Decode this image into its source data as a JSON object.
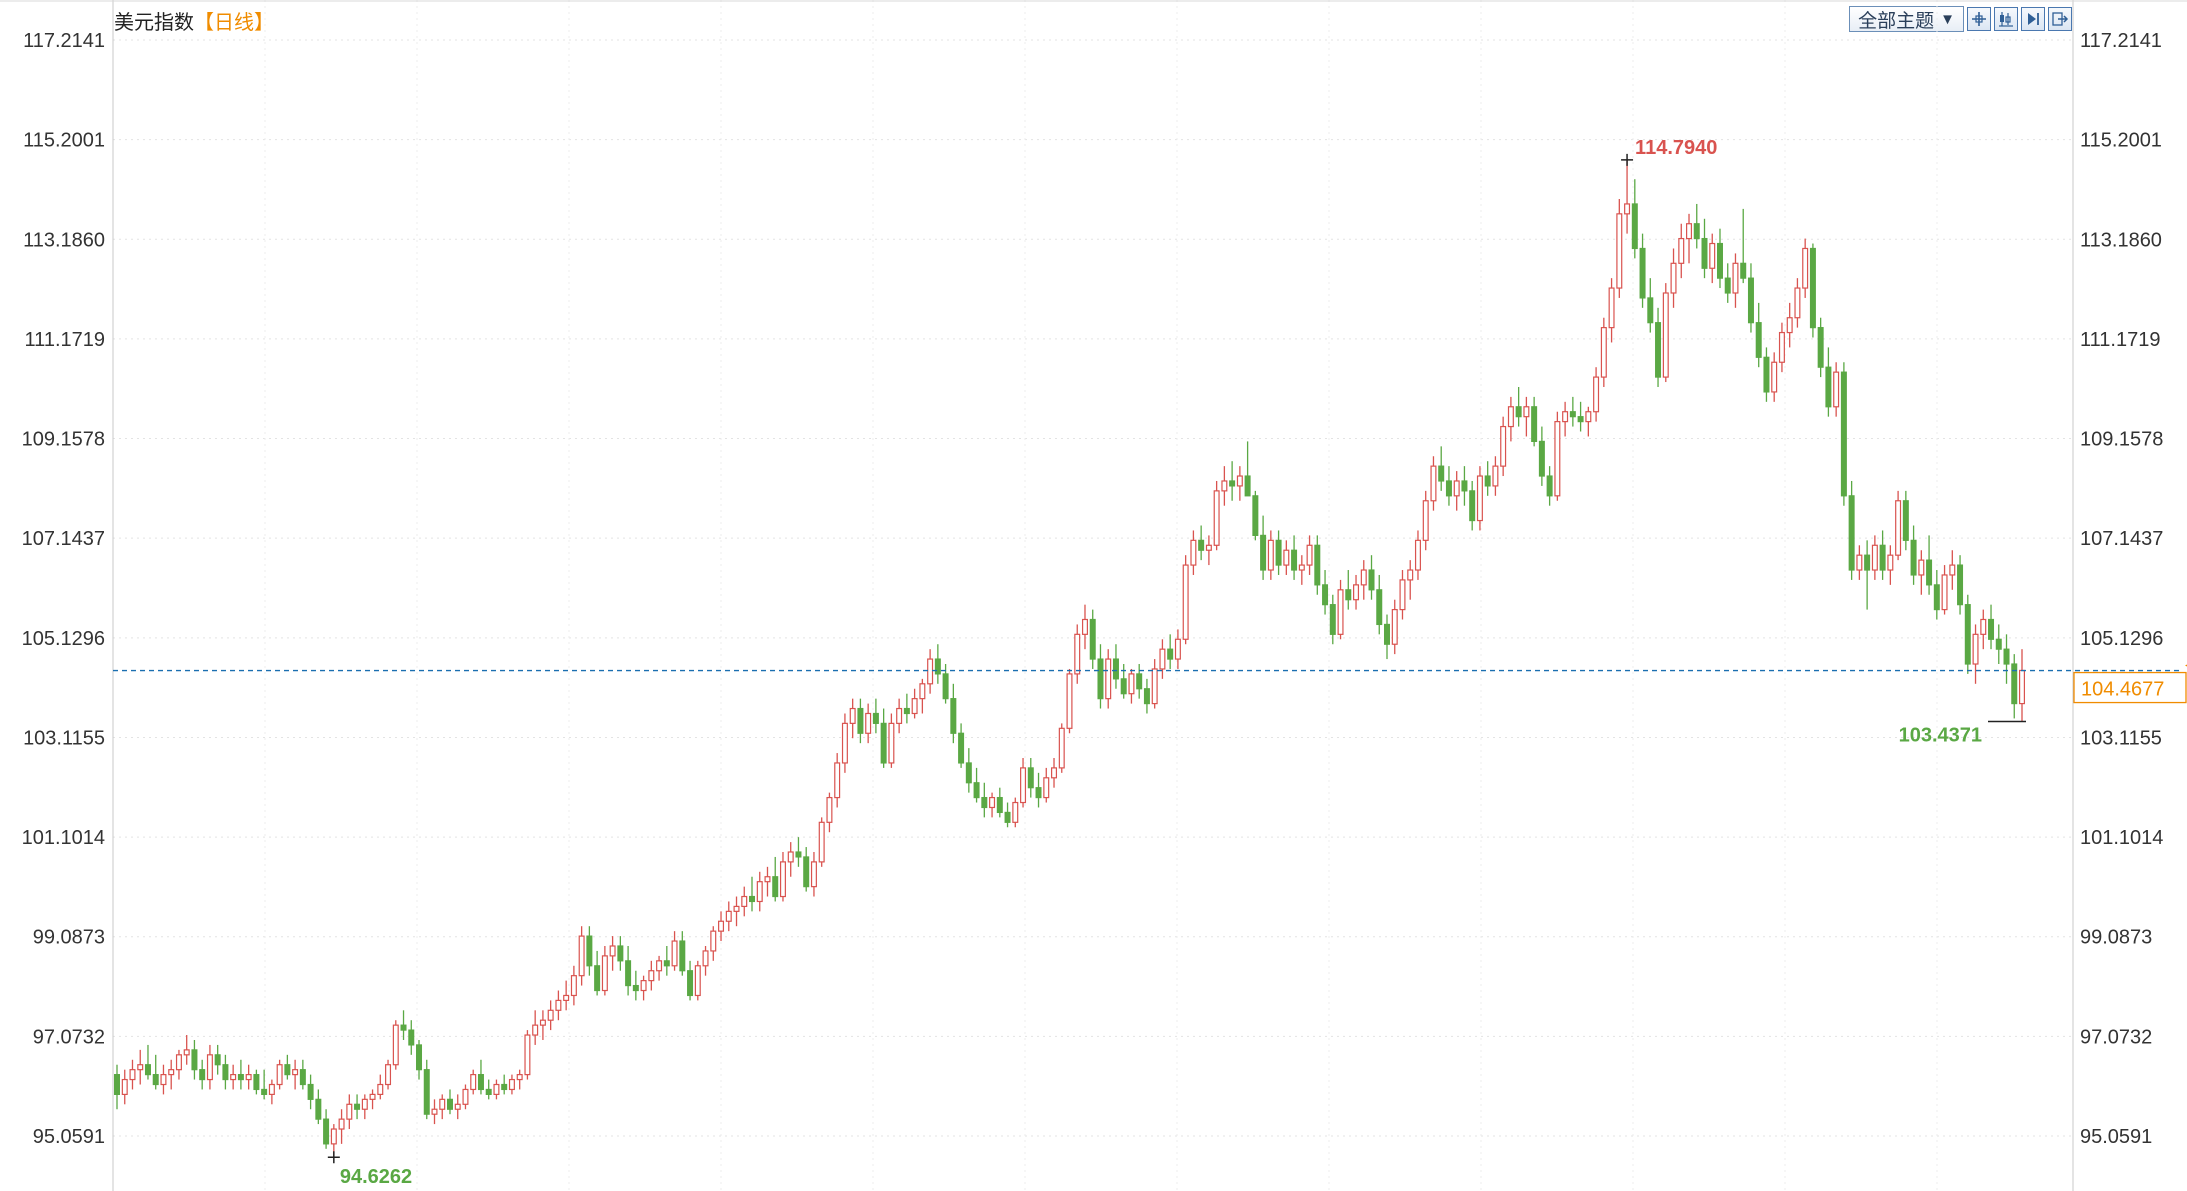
{
  "header": {
    "title": "美元指数",
    "period": "【日线】"
  },
  "toolbar": {
    "theme_label": "全部主题",
    "caret": "▼",
    "icons": [
      "crosshair-icon",
      "candlestick-icon",
      "step-forward-icon",
      "export-icon"
    ]
  },
  "colors": {
    "up": "#d9534f",
    "down": "#5aa844",
    "current_line": "#1a6fb0",
    "current_box": "#f08c00"
  },
  "chart_data": {
    "type": "candlestick",
    "title": "美元指数",
    "period": "日线",
    "y_ticks": [
      "117.2141",
      "115.2001",
      "113.1860",
      "111.1719",
      "109.1578",
      "107.1437",
      "105.1296",
      "103.1155",
      "101.1014",
      "99.0873",
      "97.0732",
      "95.0591"
    ],
    "ylim": [
      94.4,
      117.2141
    ],
    "current_price": "104.4677",
    "annotations": {
      "high": "114.7940",
      "low_left": "94.6262",
      "low_right": "103.4371"
    },
    "grid": true,
    "ohlc": [
      [
        96.3,
        96.5,
        95.6,
        95.9
      ],
      [
        95.9,
        96.4,
        95.7,
        96.2
      ],
      [
        96.2,
        96.6,
        96.0,
        96.4
      ],
      [
        96.4,
        96.8,
        96.1,
        96.5
      ],
      [
        96.5,
        96.9,
        96.2,
        96.3
      ],
      [
        96.3,
        96.7,
        96.0,
        96.1
      ],
      [
        96.1,
        96.5,
        95.9,
        96.3
      ],
      [
        96.3,
        96.6,
        96.0,
        96.4
      ],
      [
        96.4,
        96.8,
        96.2,
        96.7
      ],
      [
        96.7,
        97.1,
        96.5,
        96.8
      ],
      [
        96.8,
        97.0,
        96.2,
        96.4
      ],
      [
        96.4,
        96.6,
        96.0,
        96.2
      ],
      [
        96.2,
        96.9,
        96.0,
        96.7
      ],
      [
        96.7,
        96.9,
        96.3,
        96.5
      ],
      [
        96.5,
        96.7,
        96.0,
        96.2
      ],
      [
        96.2,
        96.5,
        96.0,
        96.3
      ],
      [
        96.3,
        96.6,
        96.0,
        96.2
      ],
      [
        96.2,
        96.5,
        96.0,
        96.3
      ],
      [
        96.3,
        96.4,
        95.9,
        96.0
      ],
      [
        96.0,
        96.4,
        95.8,
        95.9
      ],
      [
        95.9,
        96.2,
        95.7,
        96.1
      ],
      [
        96.1,
        96.6,
        96.0,
        96.5
      ],
      [
        96.5,
        96.7,
        96.2,
        96.3
      ],
      [
        96.3,
        96.6,
        96.0,
        96.4
      ],
      [
        96.4,
        96.6,
        96.0,
        96.1
      ],
      [
        96.1,
        96.3,
        95.6,
        95.8
      ],
      [
        95.8,
        96.0,
        95.3,
        95.4
      ],
      [
        95.4,
        95.6,
        94.8,
        94.9
      ],
      [
        94.9,
        95.3,
        94.63,
        95.2
      ],
      [
        95.2,
        95.6,
        94.9,
        95.4
      ],
      [
        95.4,
        95.9,
        95.2,
        95.7
      ],
      [
        95.7,
        95.9,
        95.4,
        95.6
      ],
      [
        95.6,
        95.9,
        95.4,
        95.8
      ],
      [
        95.8,
        96.0,
        95.6,
        95.9
      ],
      [
        95.9,
        96.3,
        95.8,
        96.1
      ],
      [
        96.1,
        96.6,
        96.0,
        96.5
      ],
      [
        96.5,
        97.4,
        96.4,
        97.3
      ],
      [
        97.3,
        97.6,
        97.0,
        97.2
      ],
      [
        97.2,
        97.4,
        96.7,
        96.9
      ],
      [
        96.9,
        97.0,
        96.2,
        96.4
      ],
      [
        96.4,
        96.6,
        95.4,
        95.5
      ],
      [
        95.5,
        95.8,
        95.3,
        95.6
      ],
      [
        95.6,
        95.9,
        95.4,
        95.8
      ],
      [
        95.8,
        96.0,
        95.5,
        95.6
      ],
      [
        95.6,
        95.9,
        95.4,
        95.7
      ],
      [
        95.7,
        96.1,
        95.6,
        96.0
      ],
      [
        96.0,
        96.4,
        95.9,
        96.3
      ],
      [
        96.3,
        96.6,
        95.9,
        96.0
      ],
      [
        96.0,
        96.2,
        95.8,
        95.9
      ],
      [
        95.9,
        96.2,
        95.8,
        96.1
      ],
      [
        96.1,
        96.3,
        95.9,
        96.0
      ],
      [
        96.0,
        96.3,
        95.9,
        96.2
      ],
      [
        96.2,
        96.4,
        96.0,
        96.3
      ],
      [
        96.3,
        97.2,
        96.2,
        97.1
      ],
      [
        97.1,
        97.6,
        96.9,
        97.3
      ],
      [
        97.3,
        97.6,
        97.0,
        97.4
      ],
      [
        97.4,
        97.8,
        97.2,
        97.6
      ],
      [
        97.6,
        98.0,
        97.4,
        97.8
      ],
      [
        97.8,
        98.2,
        97.6,
        97.9
      ],
      [
        97.9,
        98.5,
        97.7,
        98.3
      ],
      [
        98.3,
        99.3,
        98.1,
        99.1
      ],
      [
        99.1,
        99.3,
        98.3,
        98.5
      ],
      [
        98.5,
        98.8,
        97.9,
        98.0
      ],
      [
        98.0,
        98.9,
        97.9,
        98.7
      ],
      [
        98.7,
        99.1,
        98.4,
        98.9
      ],
      [
        98.9,
        99.1,
        98.4,
        98.6
      ],
      [
        98.6,
        98.9,
        97.9,
        98.1
      ],
      [
        98.1,
        98.4,
        97.8,
        98.0
      ],
      [
        98.0,
        98.3,
        97.8,
        98.2
      ],
      [
        98.2,
        98.6,
        98.0,
        98.4
      ],
      [
        98.4,
        98.7,
        98.2,
        98.6
      ],
      [
        98.6,
        98.9,
        98.3,
        98.5
      ],
      [
        98.5,
        99.2,
        98.4,
        99.0
      ],
      [
        99.0,
        99.2,
        98.3,
        98.4
      ],
      [
        98.4,
        98.6,
        97.8,
        97.9
      ],
      [
        97.9,
        98.6,
        97.8,
        98.5
      ],
      [
        98.5,
        98.9,
        98.3,
        98.8
      ],
      [
        98.8,
        99.3,
        98.6,
        99.2
      ],
      [
        99.2,
        99.6,
        99.0,
        99.4
      ],
      [
        99.4,
        99.8,
        99.2,
        99.6
      ],
      [
        99.6,
        99.9,
        99.3,
        99.7
      ],
      [
        99.7,
        100.1,
        99.5,
        99.9
      ],
      [
        99.9,
        100.3,
        99.6,
        99.8
      ],
      [
        99.8,
        100.4,
        99.6,
        100.2
      ],
      [
        100.2,
        100.5,
        99.9,
        100.3
      ],
      [
        100.3,
        100.7,
        99.8,
        99.9
      ],
      [
        99.9,
        100.8,
        99.8,
        100.6
      ],
      [
        100.6,
        101.0,
        100.3,
        100.8
      ],
      [
        100.8,
        101.1,
        100.5,
        100.7
      ],
      [
        100.7,
        100.9,
        100.0,
        100.1
      ],
      [
        100.1,
        100.8,
        99.9,
        100.6
      ],
      [
        100.6,
        101.5,
        100.5,
        101.4
      ],
      [
        101.4,
        102.0,
        101.2,
        101.9
      ],
      [
        101.9,
        102.8,
        101.7,
        102.6
      ],
      [
        102.6,
        103.6,
        102.4,
        103.4
      ],
      [
        103.4,
        103.9,
        103.1,
        103.7
      ],
      [
        103.7,
        103.9,
        103.0,
        103.2
      ],
      [
        103.2,
        103.8,
        103.0,
        103.6
      ],
      [
        103.6,
        103.9,
        103.2,
        103.4
      ],
      [
        103.4,
        103.7,
        102.5,
        102.6
      ],
      [
        102.6,
        103.6,
        102.5,
        103.4
      ],
      [
        103.4,
        103.9,
        103.2,
        103.7
      ],
      [
        103.7,
        104.0,
        103.4,
        103.6
      ],
      [
        103.6,
        104.1,
        103.5,
        103.9
      ],
      [
        103.9,
        104.3,
        103.6,
        104.2
      ],
      [
        104.2,
        104.9,
        104.0,
        104.7
      ],
      [
        104.7,
        105.0,
        104.2,
        104.4
      ],
      [
        104.4,
        104.6,
        103.8,
        103.9
      ],
      [
        103.9,
        104.2,
        103.0,
        103.2
      ],
      [
        103.2,
        103.4,
        102.5,
        102.6
      ],
      [
        102.6,
        102.9,
        102.0,
        102.2
      ],
      [
        102.2,
        102.5,
        101.8,
        101.9
      ],
      [
        101.9,
        102.2,
        101.5,
        101.7
      ],
      [
        101.7,
        102.0,
        101.5,
        101.9
      ],
      [
        101.9,
        102.1,
        101.5,
        101.6
      ],
      [
        101.6,
        101.8,
        101.3,
        101.4
      ],
      [
        101.4,
        101.9,
        101.3,
        101.8
      ],
      [
        101.8,
        102.7,
        101.7,
        102.5
      ],
      [
        102.5,
        102.7,
        101.9,
        102.1
      ],
      [
        102.1,
        102.4,
        101.7,
        101.9
      ],
      [
        101.9,
        102.5,
        101.8,
        102.3
      ],
      [
        102.3,
        102.7,
        102.1,
        102.5
      ],
      [
        102.5,
        103.4,
        102.4,
        103.3
      ],
      [
        103.3,
        104.5,
        103.2,
        104.4
      ],
      [
        104.4,
        105.4,
        104.2,
        105.2
      ],
      [
        105.2,
        105.8,
        104.9,
        105.5
      ],
      [
        105.5,
        105.7,
        104.5,
        104.7
      ],
      [
        104.7,
        105.0,
        103.7,
        103.9
      ],
      [
        103.9,
        104.9,
        103.7,
        104.7
      ],
      [
        104.7,
        105.0,
        104.1,
        104.3
      ],
      [
        104.3,
        104.6,
        103.9,
        104.0
      ],
      [
        104.0,
        104.5,
        103.8,
        104.4
      ],
      [
        104.4,
        104.6,
        103.9,
        104.1
      ],
      [
        104.1,
        104.3,
        103.6,
        103.8
      ],
      [
        103.8,
        104.7,
        103.7,
        104.5
      ],
      [
        104.5,
        105.1,
        104.3,
        104.9
      ],
      [
        104.9,
        105.2,
        104.5,
        104.7
      ],
      [
        104.7,
        105.3,
        104.5,
        105.1
      ],
      [
        105.1,
        106.8,
        105.0,
        106.6
      ],
      [
        106.6,
        107.3,
        106.4,
        107.1
      ],
      [
        107.1,
        107.4,
        106.7,
        106.9
      ],
      [
        106.9,
        107.2,
        106.6,
        107.0
      ],
      [
        107.0,
        108.3,
        106.9,
        108.1
      ],
      [
        108.1,
        108.6,
        107.8,
        108.3
      ],
      [
        108.3,
        108.7,
        107.9,
        108.2
      ],
      [
        108.2,
        108.6,
        107.9,
        108.4
      ],
      [
        108.4,
        109.1,
        108.0,
        108.0
      ],
      [
        108.0,
        108.1,
        107.1,
        107.2
      ],
      [
        107.2,
        107.6,
        106.3,
        106.5
      ],
      [
        106.5,
        107.3,
        106.3,
        107.1
      ],
      [
        107.1,
        107.3,
        106.4,
        106.6
      ],
      [
        106.6,
        107.1,
        106.4,
        106.9
      ],
      [
        106.9,
        107.2,
        106.3,
        106.5
      ],
      [
        106.5,
        106.8,
        106.2,
        106.6
      ],
      [
        106.6,
        107.2,
        106.4,
        107.0
      ],
      [
        107.0,
        107.2,
        106.0,
        106.2
      ],
      [
        106.2,
        106.5,
        105.6,
        105.8
      ],
      [
        105.8,
        106.0,
        105.0,
        105.2
      ],
      [
        105.2,
        106.3,
        105.1,
        106.1
      ],
      [
        106.1,
        106.5,
        105.7,
        105.9
      ],
      [
        105.9,
        106.4,
        105.7,
        106.2
      ],
      [
        106.2,
        106.7,
        105.9,
        106.5
      ],
      [
        106.5,
        106.8,
        105.9,
        106.1
      ],
      [
        106.1,
        106.4,
        105.2,
        105.4
      ],
      [
        105.4,
        105.6,
        104.7,
        105.0
      ],
      [
        105.0,
        105.9,
        104.8,
        105.7
      ],
      [
        105.7,
        106.5,
        105.5,
        106.3
      ],
      [
        106.3,
        106.7,
        105.9,
        106.5
      ],
      [
        106.5,
        107.3,
        106.3,
        107.1
      ],
      [
        107.1,
        108.1,
        106.9,
        107.9
      ],
      [
        107.9,
        108.8,
        107.7,
        108.6
      ],
      [
        108.6,
        109.0,
        108.1,
        108.3
      ],
      [
        108.3,
        108.6,
        107.8,
        108.0
      ],
      [
        108.0,
        108.5,
        107.7,
        108.3
      ],
      [
        108.3,
        108.6,
        107.8,
        108.1
      ],
      [
        108.1,
        108.3,
        107.3,
        107.5
      ],
      [
        107.5,
        108.6,
        107.3,
        108.4
      ],
      [
        108.4,
        108.7,
        108.0,
        108.2
      ],
      [
        108.2,
        108.8,
        108.0,
        108.6
      ],
      [
        108.6,
        109.6,
        108.4,
        109.4
      ],
      [
        109.4,
        110.0,
        109.1,
        109.8
      ],
      [
        109.8,
        110.2,
        109.4,
        109.6
      ],
      [
        109.6,
        110.0,
        109.2,
        109.8
      ],
      [
        109.8,
        110.0,
        109.0,
        109.1
      ],
      [
        109.1,
        109.4,
        108.2,
        108.4
      ],
      [
        108.4,
        108.6,
        107.8,
        108.0
      ],
      [
        108.0,
        109.7,
        107.9,
        109.5
      ],
      [
        109.5,
        109.9,
        109.2,
        109.7
      ],
      [
        109.7,
        110.0,
        109.4,
        109.6
      ],
      [
        109.6,
        109.9,
        109.3,
        109.5
      ],
      [
        109.5,
        109.8,
        109.2,
        109.7
      ],
      [
        109.7,
        110.6,
        109.5,
        110.4
      ],
      [
        110.4,
        111.6,
        110.2,
        111.4
      ],
      [
        111.4,
        112.4,
        111.1,
        112.2
      ],
      [
        112.2,
        114.0,
        112.0,
        113.7
      ],
      [
        113.7,
        114.79,
        113.3,
        113.9
      ],
      [
        113.9,
        114.4,
        112.8,
        113.0
      ],
      [
        113.0,
        113.3,
        111.8,
        112.0
      ],
      [
        112.0,
        112.4,
        111.3,
        111.5
      ],
      [
        111.5,
        111.8,
        110.2,
        110.4
      ],
      [
        110.4,
        112.3,
        110.3,
        112.1
      ],
      [
        112.1,
        113.0,
        111.8,
        112.7
      ],
      [
        112.7,
        113.5,
        112.4,
        113.2
      ],
      [
        113.2,
        113.7,
        112.7,
        113.5
      ],
      [
        113.5,
        113.9,
        113.0,
        113.2
      ],
      [
        113.2,
        113.6,
        112.4,
        112.6
      ],
      [
        112.6,
        113.3,
        112.3,
        113.1
      ],
      [
        113.1,
        113.4,
        112.2,
        112.4
      ],
      [
        112.4,
        112.7,
        111.9,
        112.1
      ],
      [
        112.1,
        112.9,
        111.8,
        112.7
      ],
      [
        112.7,
        113.8,
        112.3,
        112.4
      ],
      [
        112.4,
        112.7,
        111.3,
        111.5
      ],
      [
        111.5,
        111.9,
        110.6,
        110.8
      ],
      [
        110.8,
        111.0,
        109.9,
        110.1
      ],
      [
        110.1,
        110.9,
        109.9,
        110.7
      ],
      [
        110.7,
        111.5,
        110.5,
        111.3
      ],
      [
        111.3,
        111.9,
        111.0,
        111.6
      ],
      [
        111.6,
        112.4,
        111.4,
        112.2
      ],
      [
        112.2,
        113.2,
        112.0,
        113.0
      ],
      [
        113.0,
        113.1,
        111.2,
        111.4
      ],
      [
        111.4,
        111.6,
        110.4,
        110.6
      ],
      [
        110.6,
        111.0,
        109.6,
        109.8
      ],
      [
        109.8,
        110.7,
        109.6,
        110.5
      ],
      [
        110.5,
        110.7,
        107.8,
        108.0
      ],
      [
        108.0,
        108.3,
        106.3,
        106.5
      ],
      [
        106.5,
        107.0,
        106.3,
        106.8
      ],
      [
        106.8,
        107.1,
        105.7,
        106.5
      ],
      [
        106.5,
        107.2,
        106.3,
        107.0
      ],
      [
        107.0,
        107.3,
        106.3,
        106.5
      ],
      [
        106.5,
        107.0,
        106.2,
        106.8
      ],
      [
        106.8,
        108.1,
        106.7,
        107.9
      ],
      [
        107.9,
        108.1,
        106.9,
        107.1
      ],
      [
        107.1,
        107.4,
        106.2,
        106.4
      ],
      [
        106.4,
        106.9,
        106.0,
        106.7
      ],
      [
        106.7,
        107.2,
        106.0,
        106.2
      ],
      [
        106.2,
        106.5,
        105.5,
        105.7
      ],
      [
        105.7,
        106.6,
        105.6,
        106.4
      ],
      [
        106.4,
        106.9,
        106.1,
        106.6
      ],
      [
        106.6,
        106.8,
        105.6,
        105.8
      ],
      [
        105.8,
        106.0,
        104.4,
        104.6
      ],
      [
        104.6,
        105.4,
        104.2,
        105.2
      ],
      [
        105.2,
        105.7,
        104.9,
        105.5
      ],
      [
        105.5,
        105.8,
        104.9,
        105.1
      ],
      [
        105.1,
        105.4,
        104.6,
        104.9
      ],
      [
        104.9,
        105.2,
        104.2,
        104.6
      ],
      [
        104.6,
        104.8,
        103.5,
        103.8
      ],
      [
        103.8,
        104.9,
        103.4371,
        104.47
      ]
    ]
  }
}
